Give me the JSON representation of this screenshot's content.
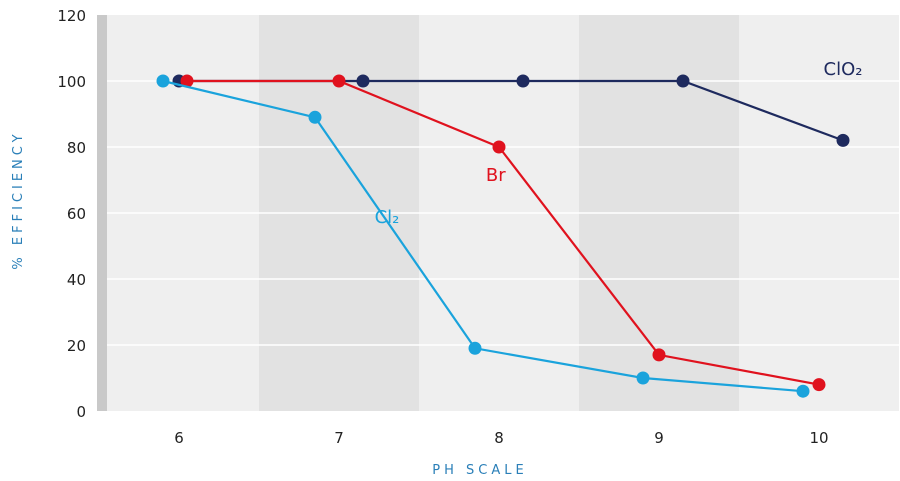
{
  "chart_data": {
    "type": "line",
    "xlabel": "PH SCALE",
    "ylabel": "% EFFICIENCY",
    "categories": [
      "6",
      "7",
      "8",
      "9",
      "10"
    ],
    "ylim": [
      0,
      120
    ],
    "yticks": [
      "0",
      "20",
      "40",
      "60",
      "80",
      "100",
      "120"
    ],
    "grid": true,
    "legend": "none",
    "series": [
      {
        "name": "ClO₂",
        "color": "#1e2a5e",
        "points": [
          [
            6,
            100
          ],
          [
            7.15,
            100
          ],
          [
            8.15,
            100
          ],
          [
            9.15,
            100
          ],
          [
            10.15,
            82
          ]
        ]
      },
      {
        "name": "Br",
        "color": "#e0121e",
        "points": [
          [
            6.05,
            100
          ],
          [
            7,
            100
          ],
          [
            8,
            80
          ],
          [
            9,
            17
          ],
          [
            10,
            8
          ]
        ]
      },
      {
        "name": "Cl₂",
        "color": "#1aa3dc",
        "points": [
          [
            5.9,
            100
          ],
          [
            6.85,
            89
          ],
          [
            7.85,
            19
          ],
          [
            8.9,
            10
          ],
          [
            9.9,
            6
          ]
        ]
      }
    ]
  }
}
